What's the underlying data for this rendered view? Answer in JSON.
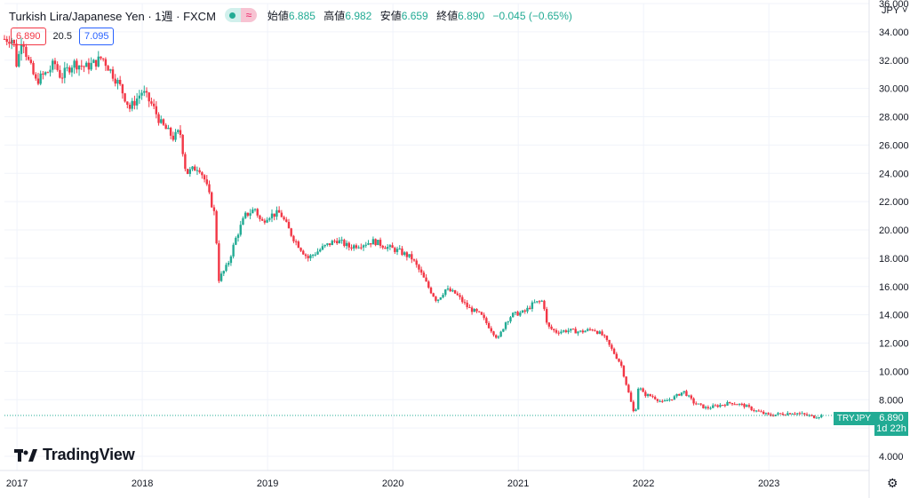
{
  "header": {
    "symbol": "Turkish Lira/Japanese Yen · 1週 · FXCM",
    "open_label": "始値",
    "open": "6.885",
    "high_label": "高値",
    "high": "6.982",
    "low_label": "安値",
    "low": "6.659",
    "close_label": "終値",
    "close": "6.890",
    "change": "−0.045 (−0.65%)",
    "wave_icon": "≈"
  },
  "quote": {
    "bid": "6.890",
    "spread": "20.5",
    "ask": "7.095"
  },
  "currency_selector": "JPY",
  "logo_text": "TradingView",
  "price_tag": {
    "symbol": "TRYJPY",
    "price": "6.890",
    "countdown": "1d 22h"
  },
  "colors": {
    "up": "#22ab94",
    "down": "#f23645",
    "grid": "#f0f3fa",
    "axis_text": "#131722"
  },
  "chart_data": {
    "type": "candlestick",
    "title": "Turkish Lira/Japanese Yen",
    "ylim": [
      3.0,
      36.0
    ],
    "y_ticks": [
      "4.000",
      "6.000",
      "8.000",
      "10.000",
      "12.000",
      "14.000",
      "16.000",
      "18.000",
      "20.000",
      "22.000",
      "24.000",
      "26.000",
      "28.000",
      "30.000",
      "32.000",
      "34.000",
      "36.000"
    ],
    "x_ticks": [
      "2017",
      "2018",
      "2019",
      "2020",
      "2021",
      "2022",
      "2023"
    ],
    "x_domain": [
      2016.9,
      2023.8
    ],
    "anchors": [
      [
        2016.9,
        33.5
      ],
      [
        2016.97,
        33.5
      ],
      [
        2017.0,
        31.5
      ],
      [
        2017.04,
        33.8
      ],
      [
        2017.08,
        32.2
      ],
      [
        2017.15,
        30.5
      ],
      [
        2017.25,
        31.2
      ],
      [
        2017.3,
        31.8
      ],
      [
        2017.35,
        30.8
      ],
      [
        2017.45,
        31.8
      ],
      [
        2017.55,
        31.5
      ],
      [
        2017.62,
        31.8
      ],
      [
        2017.68,
        32.2
      ],
      [
        2017.75,
        31.2
      ],
      [
        2017.82,
        30.2
      ],
      [
        2017.9,
        28.6
      ],
      [
        2018.0,
        29.8
      ],
      [
        2018.08,
        28.8
      ],
      [
        2018.15,
        27.5
      ],
      [
        2018.25,
        26.5
      ],
      [
        2018.3,
        27.0
      ],
      [
        2018.35,
        24.0
      ],
      [
        2018.45,
        24.5
      ],
      [
        2018.5,
        23.5
      ],
      [
        2018.58,
        21.0
      ],
      [
        2018.61,
        16.5
      ],
      [
        2018.68,
        17.5
      ],
      [
        2018.75,
        19.5
      ],
      [
        2018.82,
        21.0
      ],
      [
        2018.9,
        21.5
      ],
      [
        2018.95,
        20.5
      ],
      [
        2019.0,
        21.0
      ],
      [
        2019.1,
        21.2
      ],
      [
        2019.2,
        19.5
      ],
      [
        2019.32,
        18.0
      ],
      [
        2019.45,
        18.8
      ],
      [
        2019.55,
        19.3
      ],
      [
        2019.65,
        18.8
      ],
      [
        2019.75,
        19.0
      ],
      [
        2019.85,
        19.2
      ],
      [
        2019.95,
        18.8
      ],
      [
        2020.05,
        18.5
      ],
      [
        2020.15,
        18.0
      ],
      [
        2020.22,
        17.0
      ],
      [
        2020.28,
        16.0
      ],
      [
        2020.35,
        15.0
      ],
      [
        2020.42,
        15.8
      ],
      [
        2020.5,
        15.5
      ],
      [
        2020.6,
        14.5
      ],
      [
        2020.7,
        14.0
      ],
      [
        2020.78,
        13.0
      ],
      [
        2020.84,
        12.3
      ],
      [
        2020.9,
        13.5
      ],
      [
        2020.95,
        14.0
      ],
      [
        2021.05,
        14.2
      ],
      [
        2021.12,
        14.8
      ],
      [
        2021.2,
        15.0
      ],
      [
        2021.23,
        13.2
      ],
      [
        2021.3,
        12.8
      ],
      [
        2021.4,
        12.9
      ],
      [
        2021.5,
        12.8
      ],
      [
        2021.6,
        13.0
      ],
      [
        2021.68,
        12.5
      ],
      [
        2021.75,
        11.5
      ],
      [
        2021.82,
        10.5
      ],
      [
        2021.88,
        8.5
      ],
      [
        2021.93,
        6.8
      ],
      [
        2021.96,
        9.0
      ],
      [
        2022.0,
        8.4
      ],
      [
        2022.08,
        8.2
      ],
      [
        2022.15,
        7.8
      ],
      [
        2022.25,
        8.2
      ],
      [
        2022.32,
        8.6
      ],
      [
        2022.4,
        7.8
      ],
      [
        2022.5,
        7.4
      ],
      [
        2022.6,
        7.6
      ],
      [
        2022.7,
        7.8
      ],
      [
        2022.8,
        7.6
      ],
      [
        2022.9,
        7.2
      ],
      [
        2023.0,
        6.9
      ],
      [
        2023.1,
        7.0
      ],
      [
        2023.2,
        7.1
      ],
      [
        2023.3,
        6.9
      ],
      [
        2023.36,
        6.8
      ],
      [
        2023.42,
        6.89
      ]
    ]
  }
}
